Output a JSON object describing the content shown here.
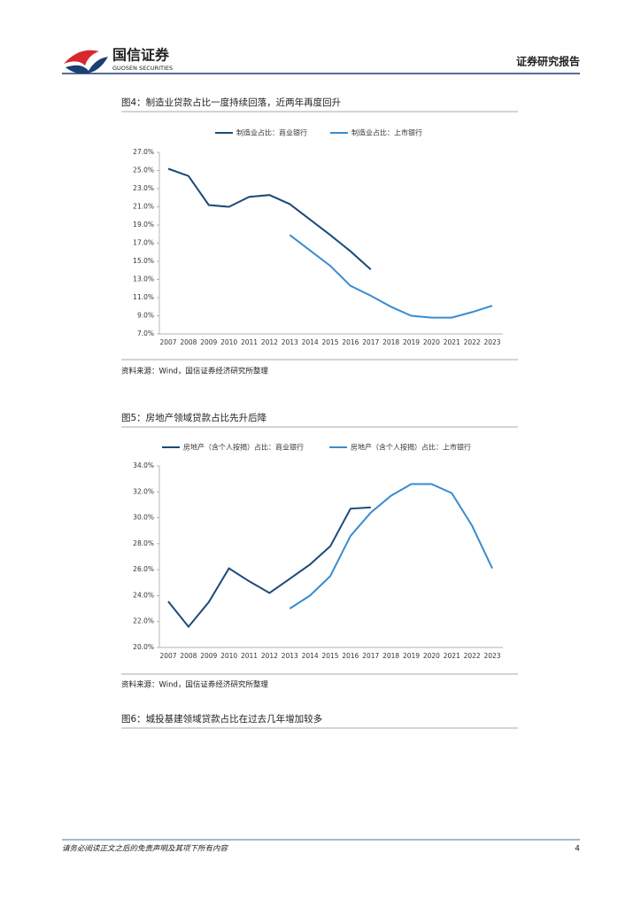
{
  "header": {
    "brand": "国信证券",
    "brand_en": "GUOSEN SECURITIES",
    "report_type": "证券研究报告"
  },
  "figures": [
    {
      "title": "图4：制造业贷款占比一度持续回落，近两年再度回升",
      "source": "资料来源：Wind，国信证券经济研究所整理"
    },
    {
      "title": "图5：房地产领域贷款占比先升后降",
      "source": "资料来源：Wind，国信证券经济研究所整理"
    },
    {
      "title": "图6：城投基建领域贷款占比在过去几年增加较多"
    }
  ],
  "chart_data": [
    {
      "type": "line",
      "categories": [
        "2007",
        "2008",
        "2009",
        "2010",
        "2011",
        "2012",
        "2013",
        "2014",
        "2015",
        "2016",
        "2017",
        "2018",
        "2019",
        "2020",
        "2021",
        "2022",
        "2023"
      ],
      "series": [
        {
          "name": "制造业占比：商业银行",
          "color": "#1b4a78",
          "values": [
            25.2,
            24.4,
            21.2,
            21.0,
            22.1,
            22.3,
            21.3,
            19.6,
            17.9,
            16.1,
            14.1,
            null,
            null,
            null,
            null,
            null,
            null
          ]
        },
        {
          "name": "制造业占比：上市银行",
          "color": "#3a8ccf",
          "values": [
            null,
            null,
            null,
            null,
            null,
            null,
            17.9,
            16.2,
            14.5,
            12.3,
            11.2,
            10.0,
            9.0,
            8.8,
            8.8,
            9.4,
            10.1
          ]
        }
      ],
      "ylim": [
        7,
        27
      ],
      "yticks": [
        {
          "value": 7,
          "label": "7.0%"
        },
        {
          "value": 9,
          "label": "9.0%"
        },
        {
          "value": 11,
          "label": "11.0%"
        },
        {
          "value": 13,
          "label": "13.0%"
        },
        {
          "value": 15,
          "label": "15.0%"
        },
        {
          "value": 17,
          "label": "17.0%"
        },
        {
          "value": 19,
          "label": "19.0%"
        },
        {
          "value": 21,
          "label": "21.0%"
        },
        {
          "value": 23,
          "label": "23.0%"
        },
        {
          "value": 25,
          "label": "25.0%"
        },
        {
          "value": 27,
          "label": "27.0%"
        }
      ],
      "legend": "top"
    },
    {
      "type": "line",
      "categories": [
        "2007",
        "2008",
        "2009",
        "2010",
        "2011",
        "2012",
        "2013",
        "2014",
        "2015",
        "2016",
        "2017",
        "2018",
        "2019",
        "2020",
        "2021",
        "2022",
        "2023"
      ],
      "series": [
        {
          "name": "房地产（含个人按揭）占比：商业银行",
          "color": "#1b4a78",
          "values": [
            23.55,
            21.6,
            23.5,
            26.1,
            25.1,
            24.2,
            25.3,
            26.4,
            27.8,
            30.7,
            30.8,
            null,
            null,
            null,
            null,
            null,
            null
          ]
        },
        {
          "name": "房地产（含个人按揭）占比：上市银行",
          "color": "#3a8ccf",
          "values": [
            null,
            null,
            null,
            null,
            null,
            null,
            23.0,
            24.0,
            25.5,
            28.6,
            30.4,
            31.7,
            32.6,
            32.6,
            31.9,
            29.4,
            26.1
          ]
        }
      ],
      "ylim": [
        20,
        34
      ],
      "yticks": [
        {
          "value": 20,
          "label": "20.0%"
        },
        {
          "value": 22,
          "label": "22.0%"
        },
        {
          "value": 24,
          "label": "24.0%"
        },
        {
          "value": 26,
          "label": "26.0%"
        },
        {
          "value": 28,
          "label": "28.0%"
        },
        {
          "value": 30,
          "label": "30.0%"
        },
        {
          "value": 32,
          "label": "32.0%"
        },
        {
          "value": 34,
          "label": "34.0%"
        }
      ],
      "legend": "top"
    }
  ],
  "footer": {
    "disclaimer": "请务必阅读正文之后的免责声明及其项下所有内容",
    "page": 4
  }
}
